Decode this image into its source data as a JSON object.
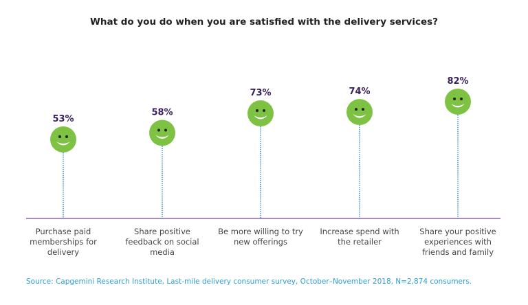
{
  "chart_data": {
    "type": "lollipop",
    "title": "What do you do when you are satisfied with the delivery services?",
    "categories": [
      "Purchase paid memberships for delivery",
      "Share positive feedback on social media",
      "Be more willing to try new offerings",
      "Increase spend with the retailer",
      "Share your positive experiences with friends and family"
    ],
    "values": [
      53,
      58,
      73,
      74,
      82
    ],
    "value_labels": [
      "53%",
      "58%",
      "73%",
      "74%",
      "82%"
    ],
    "unit": "%",
    "marker": "smiley-face-icon",
    "colors": {
      "marker": "#7dc242",
      "value_label": "#3b1f5e",
      "baseline": "#a58cc0",
      "stem": "#3a8fd0"
    },
    "grid": false
  },
  "source": "Source: Capgemini Research Institute, Last-mile delivery consumer survey, October–November 2018, N=2,874 consumers."
}
